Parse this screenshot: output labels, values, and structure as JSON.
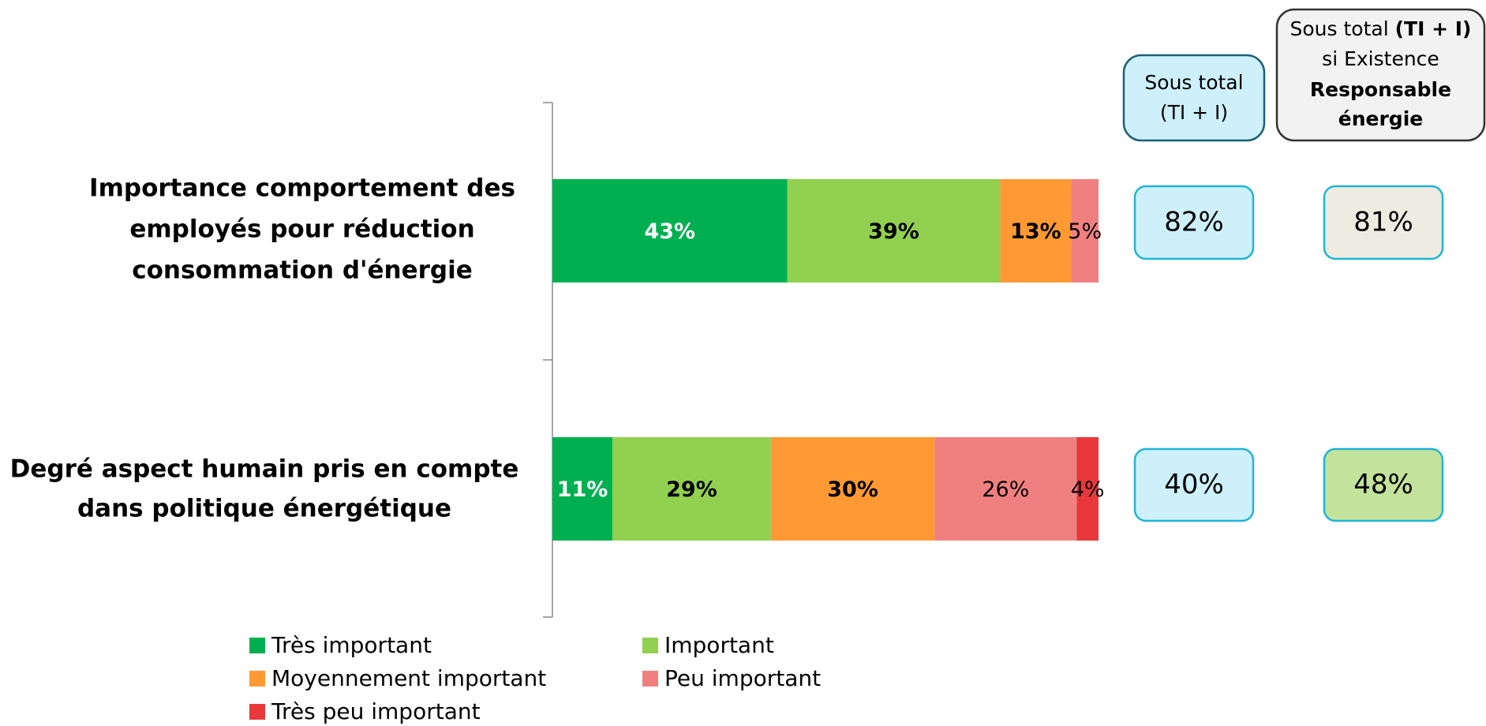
{
  "chart_data": {
    "type": "bar",
    "orientation": "horizontal",
    "stacked": true,
    "categories": [
      [
        "Importance comportement des",
        "employés pour réduction",
        "consommation d'énergie"
      ],
      [
        "Degré aspect humain pris en compte",
        "dans politique énergétique"
      ]
    ],
    "xlim": [
      0,
      100
    ],
    "series": [
      {
        "name": "Très important",
        "color": "#00b050",
        "label_color": "#ffffff",
        "label_bold": true,
        "values": [
          43,
          11
        ],
        "value_labels": [
          "43%",
          "11%"
        ]
      },
      {
        "name": "Important",
        "color": "#92d050",
        "label_color": "#000000",
        "label_bold": true,
        "values": [
          39,
          29
        ],
        "value_labels": [
          "39%",
          "29%"
        ]
      },
      {
        "name": "Moyennement important",
        "color": "#ff9933",
        "label_color": "#000000",
        "label_bold": true,
        "values": [
          13,
          30
        ],
        "value_labels": [
          "13%",
          "30%"
        ]
      },
      {
        "name": "Peu important",
        "color": "#f08080",
        "label_color": "#000000",
        "label_bold": false,
        "values": [
          5,
          26
        ],
        "value_labels": [
          "5%",
          "26%"
        ]
      },
      {
        "name": "Très peu important",
        "color": "#e8383b",
        "label_color": "#000000",
        "label_bold": false,
        "values": [
          null,
          4
        ],
        "value_labels": [
          null,
          "4%"
        ]
      }
    ],
    "subtotal_columns": [
      {
        "header_lines": [
          [
            {
              "text": "Sous total",
              "bold": false
            }
          ],
          [
            {
              "text": "(TI + I)",
              "bold": false
            }
          ]
        ],
        "header_fill": "#cdf0fb",
        "header_stroke": "#1f5f7a",
        "values": [
          82,
          40
        ],
        "value_labels": [
          "82%",
          "40%"
        ],
        "fills": [
          "#cdf0fb",
          "#cdf0fb"
        ],
        "stroke": "#1fb5d8"
      },
      {
        "header_lines": [
          [
            {
              "text": "Sous total ",
              "bold": false
            },
            {
              "text": "(TI + I)",
              "bold": true
            }
          ],
          [
            {
              "text": "si Existence",
              "bold": false
            }
          ],
          [
            {
              "text": "Responsable",
              "bold": true
            }
          ],
          [
            {
              "text": "énergie",
              "bold": true
            }
          ]
        ],
        "header_fill": "#f2f2f2",
        "header_stroke": "#333333",
        "values": [
          81,
          48
        ],
        "value_labels": [
          "81%",
          "48%"
        ],
        "fills": [
          "#eeece1",
          "#c3e29b"
        ],
        "stroke": "#1fb5d8"
      }
    ]
  }
}
